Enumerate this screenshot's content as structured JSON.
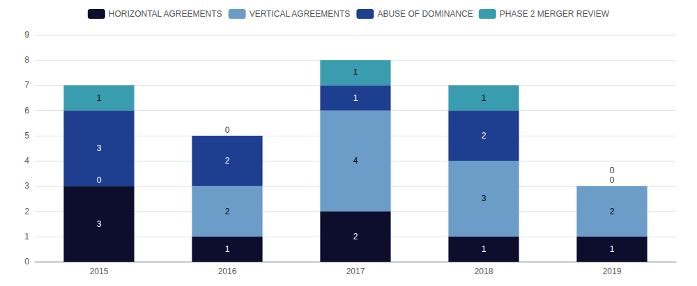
{
  "chart_data": {
    "type": "bar",
    "stacked": true,
    "data_labels": true,
    "grid": true,
    "legend": "top",
    "categories": [
      "2015",
      "2016",
      "2017",
      "2018",
      "2019"
    ],
    "series": [
      {
        "name": "HORIZONTAL AGREEMENTS",
        "color": "#0d0d2e",
        "values": [
          3,
          1,
          2,
          1,
          1
        ]
      },
      {
        "name": "VERTICAL AGREEMENTS",
        "color": "#6b9dc8",
        "values": [
          0,
          2,
          4,
          3,
          2
        ]
      },
      {
        "name": "ABUSE OF DOMINANCE",
        "color": "#1e3f8f",
        "values": [
          3,
          2,
          1,
          2,
          0
        ]
      },
      {
        "name": "PHASE 2 MERGER REVIEW",
        "color": "#3a9daf",
        "values": [
          1,
          0,
          1,
          1,
          0
        ]
      }
    ],
    "ylim": [
      0,
      9
    ],
    "yticks": [
      0,
      1,
      2,
      3,
      4,
      5,
      6,
      7,
      8,
      9
    ]
  }
}
